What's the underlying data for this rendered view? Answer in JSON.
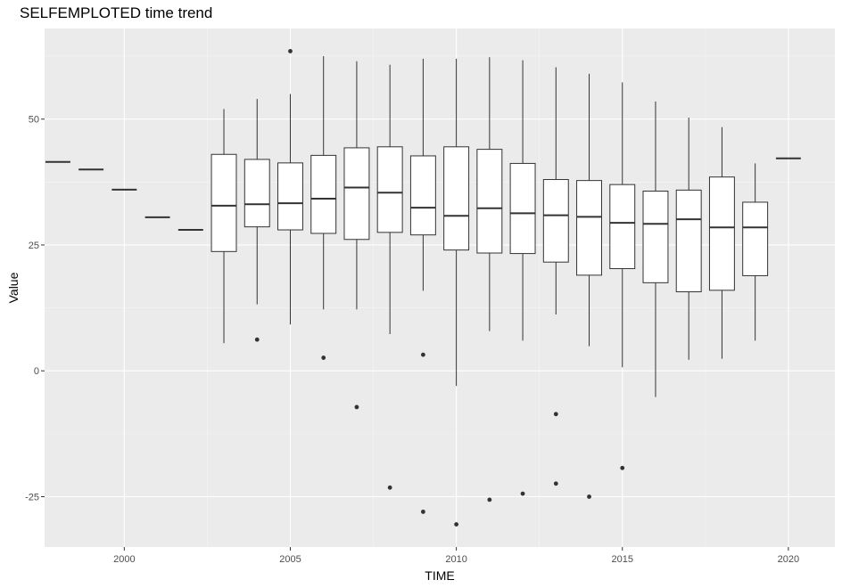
{
  "chart_data": {
    "type": "boxplot",
    "title": "SELFEMPLOTED time trend",
    "xlabel": "TIME",
    "ylabel": "Value",
    "xlim": [
      1997.6,
      2021.4
    ],
    "ylim": [
      -35,
      68
    ],
    "x_ticks": [
      2000,
      2005,
      2010,
      2015,
      2020
    ],
    "y_ticks": [
      -25,
      0,
      25,
      50
    ],
    "grid": true,
    "colors": {
      "panel": "#ebebeb",
      "grid_major": "#ffffff",
      "grid_minor": "#f5f5f5",
      "box_fill": "#ffffff",
      "box_line": "#333333",
      "point": "#333333"
    },
    "boxes": [
      {
        "year": 1998,
        "min": 41.5,
        "q1": 41.5,
        "median": 41.5,
        "q3": 41.5,
        "max": 41.5,
        "outliers": []
      },
      {
        "year": 1999,
        "min": 40,
        "q1": 40,
        "median": 40,
        "q3": 40,
        "max": 40,
        "outliers": []
      },
      {
        "year": 2000,
        "min": 36,
        "q1": 36,
        "median": 36,
        "q3": 36,
        "max": 36,
        "outliers": []
      },
      {
        "year": 2001,
        "min": 30.5,
        "q1": 30.5,
        "median": 30.5,
        "q3": 30.5,
        "max": 30.5,
        "outliers": []
      },
      {
        "year": 2002,
        "min": 28,
        "q1": 28,
        "median": 28,
        "q3": 28,
        "max": 28,
        "outliers": []
      },
      {
        "year": 2003,
        "min": 5.5,
        "q1": 23.7,
        "median": 32.8,
        "q3": 43,
        "max": 52,
        "outliers": []
      },
      {
        "year": 2004,
        "min": 13.2,
        "q1": 28.6,
        "median": 33.1,
        "q3": 42,
        "max": 54,
        "outliers": [
          6.2
        ]
      },
      {
        "year": 2005,
        "min": 9.2,
        "q1": 28,
        "median": 33.3,
        "q3": 41.3,
        "max": 55,
        "outliers": [
          63.5
        ]
      },
      {
        "year": 2006,
        "min": 12.2,
        "q1": 27.3,
        "median": 34.2,
        "q3": 42.8,
        "max": 62.5,
        "outliers": [
          2.6
        ]
      },
      {
        "year": 2007,
        "min": 12.2,
        "q1": 26.1,
        "median": 36.4,
        "q3": 44.3,
        "max": 61.5,
        "outliers": [
          -7.2
        ]
      },
      {
        "year": 2008,
        "min": 7.3,
        "q1": 27.5,
        "median": 35.4,
        "q3": 44.5,
        "max": 60.8,
        "outliers": [
          -23.2
        ]
      },
      {
        "year": 2009,
        "min": 15.9,
        "q1": 27,
        "median": 32.4,
        "q3": 42.7,
        "max": 62,
        "outliers": [
          3.2,
          -28
        ]
      },
      {
        "year": 2010,
        "min": -3,
        "q1": 24,
        "median": 30.8,
        "q3": 44.5,
        "max": 62,
        "outliers": [
          -30.5
        ]
      },
      {
        "year": 2011,
        "min": 7.9,
        "q1": 23.4,
        "median": 32.3,
        "q3": 44,
        "max": 62.3,
        "outliers": [
          -25.6
        ]
      },
      {
        "year": 2012,
        "min": 6,
        "q1": 23.3,
        "median": 31.3,
        "q3": 41.2,
        "max": 61.7,
        "outliers": [
          -24.4
        ]
      },
      {
        "year": 2013,
        "min": 11.2,
        "q1": 21.6,
        "median": 30.9,
        "q3": 38,
        "max": 60.3,
        "outliers": [
          -8.6,
          -22.4
        ]
      },
      {
        "year": 2014,
        "min": 4.9,
        "q1": 19,
        "median": 30.6,
        "q3": 37.8,
        "max": 59,
        "outliers": [
          -25
        ]
      },
      {
        "year": 2015,
        "min": 0.7,
        "q1": 20.3,
        "median": 29.4,
        "q3": 37,
        "max": 57.3,
        "outliers": [
          -19.3
        ]
      },
      {
        "year": 2016,
        "min": -5.2,
        "q1": 17.5,
        "median": 29.2,
        "q3": 35.7,
        "max": 53.5,
        "outliers": []
      },
      {
        "year": 2017,
        "min": 2.2,
        "q1": 15.7,
        "median": 30.1,
        "q3": 35.9,
        "max": 50.3,
        "outliers": []
      },
      {
        "year": 2018,
        "min": 2.4,
        "q1": 16,
        "median": 28.5,
        "q3": 38.5,
        "max": 48.4,
        "outliers": []
      },
      {
        "year": 2019,
        "min": 6,
        "q1": 18.9,
        "median": 28.5,
        "q3": 33.5,
        "max": 41.2,
        "outliers": []
      },
      {
        "year": 2020,
        "min": 42.2,
        "q1": 42.2,
        "median": 42.2,
        "q3": 42.2,
        "max": 42.2,
        "outliers": []
      }
    ]
  }
}
